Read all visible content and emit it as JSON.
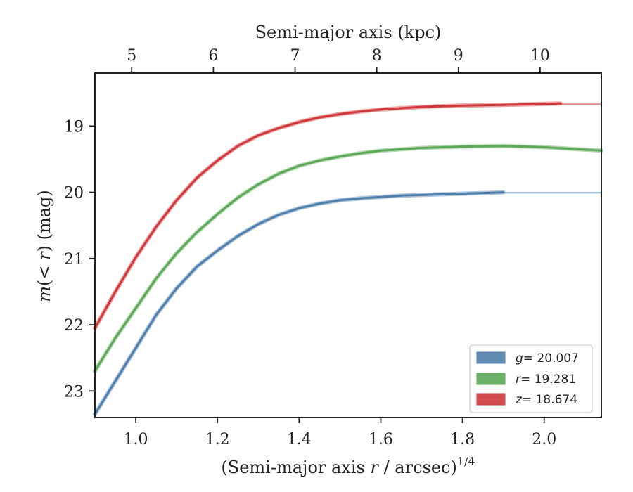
{
  "colors": {
    "g": "#4f7fac",
    "r": "#5da858",
    "z": "#d0393c",
    "frame": "#222222"
  },
  "chart_data": {
    "type": "line",
    "xlabel_parts": [
      "(Semi-major axis ",
      "r",
      " / arcsec)",
      "1/4"
    ],
    "ylabel_parts": [
      "m",
      "(< ",
      "r",
      ") (mag)"
    ],
    "top_xlabel": "Semi-major axis (kpc)",
    "xlim": [
      0.9,
      2.14
    ],
    "ylim": [
      23.4,
      18.2
    ],
    "y_inverted": true,
    "xticks": [
      1.0,
      1.2,
      1.4,
      1.6,
      1.8,
      2.0
    ],
    "xtick_labels": [
      "1.0",
      "1.2",
      "1.4",
      "1.6",
      "1.8",
      "2.0"
    ],
    "yticks": [
      19,
      20,
      21,
      22,
      23
    ],
    "ytick_labels": [
      "19",
      "20",
      "21",
      "22",
      "23"
    ],
    "top_xticks_kpc": [
      5,
      6,
      7,
      8,
      9,
      10
    ],
    "top_xtick_labels": [
      "5",
      "6",
      "7",
      "8",
      "9",
      "10"
    ],
    "top_axis_x_for_kpc": [
      0.99,
      1.19,
      1.39,
      1.59,
      1.79,
      1.99
    ],
    "legend_position": "lower-right",
    "grid": false,
    "series": [
      {
        "name": "g",
        "label_var": "g",
        "label_value": "= 20.007",
        "asymptote": 20.007,
        "x": [
          0.9,
          0.95,
          1.0,
          1.05,
          1.1,
          1.15,
          1.2,
          1.25,
          1.3,
          1.35,
          1.4,
          1.45,
          1.5,
          1.55,
          1.6,
          1.65,
          1.7,
          1.75,
          1.8,
          1.85,
          1.9
        ],
        "y": [
          23.35,
          22.85,
          22.35,
          21.85,
          21.45,
          21.12,
          20.88,
          20.66,
          20.48,
          20.34,
          20.24,
          20.17,
          20.12,
          20.09,
          20.07,
          20.05,
          20.04,
          20.03,
          20.02,
          20.01,
          20.0
        ]
      },
      {
        "name": "r",
        "label_var": "r",
        "label_value": "= 19.281",
        "asymptote": 19.3,
        "x": [
          0.9,
          0.95,
          1.0,
          1.05,
          1.1,
          1.15,
          1.2,
          1.25,
          1.3,
          1.35,
          1.4,
          1.45,
          1.5,
          1.55,
          1.6,
          1.7,
          1.8,
          1.9,
          2.0,
          2.14
        ],
        "y": [
          22.7,
          22.2,
          21.75,
          21.3,
          20.92,
          20.6,
          20.33,
          20.08,
          19.88,
          19.72,
          19.6,
          19.52,
          19.46,
          19.41,
          19.37,
          19.33,
          19.31,
          19.3,
          19.32,
          19.37
        ]
      },
      {
        "name": "z",
        "label_var": "z",
        "label_value": "= 18.674",
        "asymptote": 18.67,
        "x": [
          0.9,
          0.95,
          1.0,
          1.05,
          1.1,
          1.15,
          1.2,
          1.25,
          1.3,
          1.35,
          1.4,
          1.45,
          1.5,
          1.55,
          1.6,
          1.7,
          1.8,
          1.9,
          2.04
        ],
        "y": [
          22.05,
          21.5,
          20.98,
          20.52,
          20.12,
          19.78,
          19.52,
          19.3,
          19.14,
          19.03,
          18.94,
          18.87,
          18.82,
          18.78,
          18.75,
          18.71,
          18.69,
          18.68,
          18.66
        ]
      }
    ]
  }
}
